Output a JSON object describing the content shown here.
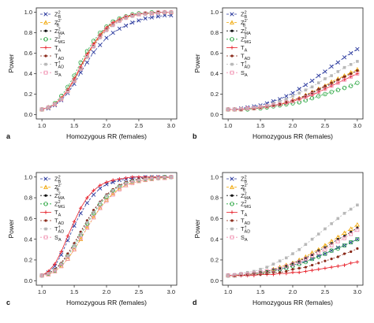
{
  "markers": {
    "Z_B": {
      "shape": "x",
      "color": "#2b3a9e"
    },
    "Z_B_prime": {
      "shape": "triangle",
      "color": "#f0a500"
    },
    "Z_MA": {
      "shape": "dot",
      "color": "#111111"
    },
    "Z_MG": {
      "shape": "circle",
      "color": "#22a33a"
    },
    "T_A": {
      "shape": "plus",
      "color": "#e8202a"
    },
    "T_AD": {
      "shape": "dot",
      "color": "#8a2a1a"
    },
    "T_AD_dagger": {
      "shape": "square",
      "color": "#b8b8b8"
    },
    "S_A": {
      "shape": "square-open",
      "color": "#f08fb0"
    }
  },
  "chart_data": [
    {
      "panel": "a",
      "type": "line",
      "xlabel": "Homozygous RR (females)",
      "ylabel": "Power",
      "xlim": [
        1.0,
        3.0
      ],
      "ylim": [
        0.0,
        1.0
      ],
      "xticks": [
        "1.0",
        "1.5",
        "2.0",
        "2.5",
        "3.0"
      ],
      "yticks": [
        "0.0",
        "0.2",
        "0.4",
        "0.6",
        "0.8",
        "1.0"
      ],
      "x": [
        1.0,
        1.1,
        1.2,
        1.3,
        1.4,
        1.5,
        1.6,
        1.7,
        1.8,
        1.9,
        2.0,
        2.1,
        2.2,
        2.3,
        2.4,
        2.5,
        2.6,
        2.7,
        2.8,
        2.9,
        3.0
      ],
      "series": [
        {
          "id": "Z_B",
          "values": [
            0.05,
            0.06,
            0.09,
            0.14,
            0.21,
            0.3,
            0.41,
            0.51,
            0.61,
            0.68,
            0.75,
            0.8,
            0.84,
            0.87,
            0.9,
            0.92,
            0.94,
            0.95,
            0.96,
            0.97,
            0.97
          ]
        },
        {
          "id": "Z_B_prime",
          "values": [
            0.05,
            0.07,
            0.1,
            0.16,
            0.24,
            0.34,
            0.46,
            0.58,
            0.68,
            0.77,
            0.84,
            0.89,
            0.93,
            0.95,
            0.97,
            0.98,
            0.99,
            0.99,
            1.0,
            1.0,
            1.0
          ]
        },
        {
          "id": "Z_MA",
          "values": [
            0.05,
            0.07,
            0.1,
            0.15,
            0.23,
            0.33,
            0.45,
            0.57,
            0.67,
            0.76,
            0.83,
            0.88,
            0.92,
            0.95,
            0.97,
            0.98,
            0.99,
            0.99,
            1.0,
            1.0,
            1.0
          ]
        },
        {
          "id": "Z_MG",
          "values": [
            0.05,
            0.07,
            0.11,
            0.18,
            0.27,
            0.38,
            0.51,
            0.62,
            0.72,
            0.8,
            0.86,
            0.91,
            0.94,
            0.96,
            0.98,
            0.99,
            0.99,
            1.0,
            1.0,
            1.0,
            1.0
          ]
        },
        {
          "id": "T_A",
          "values": [
            0.05,
            0.07,
            0.1,
            0.16,
            0.24,
            0.35,
            0.47,
            0.59,
            0.69,
            0.78,
            0.85,
            0.9,
            0.93,
            0.96,
            0.97,
            0.98,
            0.99,
            0.99,
            1.0,
            1.0,
            1.0
          ]
        },
        {
          "id": "T_AD",
          "values": [
            0.05,
            0.07,
            0.1,
            0.15,
            0.23,
            0.33,
            0.45,
            0.57,
            0.67,
            0.76,
            0.83,
            0.88,
            0.92,
            0.95,
            0.97,
            0.98,
            0.99,
            0.99,
            1.0,
            1.0,
            1.0
          ]
        },
        {
          "id": "T_AD_dagger",
          "values": [
            0.05,
            0.07,
            0.1,
            0.15,
            0.22,
            0.32,
            0.44,
            0.56,
            0.66,
            0.75,
            0.82,
            0.87,
            0.91,
            0.94,
            0.96,
            0.98,
            0.98,
            0.99,
            0.99,
            1.0,
            1.0
          ]
        },
        {
          "id": "S_A",
          "values": [
            0.05,
            0.07,
            0.1,
            0.15,
            0.23,
            0.33,
            0.45,
            0.57,
            0.67,
            0.76,
            0.83,
            0.88,
            0.92,
            0.95,
            0.97,
            0.98,
            0.99,
            0.99,
            1.0,
            1.0,
            1.0
          ]
        }
      ]
    },
    {
      "panel": "b",
      "type": "line",
      "xlabel": "Homozygous RR (females)",
      "ylabel": "Power",
      "xlim": [
        1.0,
        3.0
      ],
      "ylim": [
        0.0,
        1.0
      ],
      "xticks": [
        "1.0",
        "1.5",
        "2.0",
        "2.5",
        "3.0"
      ],
      "yticks": [
        "0.0",
        "0.2",
        "0.4",
        "0.6",
        "0.8",
        "1.0"
      ],
      "x": [
        1.0,
        1.1,
        1.2,
        1.3,
        1.4,
        1.5,
        1.6,
        1.7,
        1.8,
        1.9,
        2.0,
        2.1,
        2.2,
        2.3,
        2.4,
        2.5,
        2.6,
        2.7,
        2.8,
        2.9,
        3.0
      ],
      "series": [
        {
          "id": "Z_B",
          "values": [
            0.05,
            0.05,
            0.06,
            0.07,
            0.08,
            0.09,
            0.11,
            0.13,
            0.15,
            0.18,
            0.21,
            0.25,
            0.29,
            0.33,
            0.38,
            0.42,
            0.47,
            0.51,
            0.56,
            0.6,
            0.64
          ]
        },
        {
          "id": "Z_B_prime",
          "values": [
            0.05,
            0.05,
            0.05,
            0.06,
            0.06,
            0.07,
            0.08,
            0.09,
            0.1,
            0.12,
            0.14,
            0.16,
            0.19,
            0.22,
            0.25,
            0.28,
            0.32,
            0.35,
            0.38,
            0.41,
            0.44
          ]
        },
        {
          "id": "Z_MA",
          "values": [
            0.05,
            0.05,
            0.05,
            0.06,
            0.06,
            0.07,
            0.08,
            0.09,
            0.1,
            0.12,
            0.14,
            0.16,
            0.18,
            0.21,
            0.24,
            0.27,
            0.3,
            0.34,
            0.37,
            0.4,
            0.43
          ]
        },
        {
          "id": "Z_MG",
          "values": [
            0.05,
            0.05,
            0.05,
            0.05,
            0.06,
            0.06,
            0.07,
            0.08,
            0.09,
            0.1,
            0.11,
            0.12,
            0.14,
            0.16,
            0.18,
            0.2,
            0.22,
            0.24,
            0.26,
            0.28,
            0.31
          ]
        },
        {
          "id": "T_A",
          "values": [
            0.05,
            0.05,
            0.05,
            0.06,
            0.06,
            0.07,
            0.08,
            0.09,
            0.1,
            0.11,
            0.13,
            0.15,
            0.17,
            0.19,
            0.22,
            0.25,
            0.28,
            0.31,
            0.34,
            0.37,
            0.4
          ]
        },
        {
          "id": "T_AD",
          "values": [
            0.05,
            0.05,
            0.05,
            0.06,
            0.06,
            0.07,
            0.08,
            0.09,
            0.1,
            0.12,
            0.14,
            0.16,
            0.19,
            0.22,
            0.25,
            0.28,
            0.31,
            0.34,
            0.37,
            0.4,
            0.43
          ]
        },
        {
          "id": "T_AD_dagger",
          "values": [
            0.05,
            0.05,
            0.06,
            0.06,
            0.07,
            0.08,
            0.09,
            0.11,
            0.13,
            0.15,
            0.18,
            0.21,
            0.24,
            0.27,
            0.31,
            0.35,
            0.38,
            0.42,
            0.46,
            0.49,
            0.52
          ]
        },
        {
          "id": "S_A",
          "values": [
            0.05,
            0.05,
            0.05,
            0.06,
            0.06,
            0.07,
            0.08,
            0.09,
            0.1,
            0.12,
            0.13,
            0.15,
            0.17,
            0.2,
            0.22,
            0.25,
            0.28,
            0.31,
            0.34,
            0.37,
            0.4
          ]
        }
      ]
    },
    {
      "panel": "c",
      "type": "line",
      "xlabel": "Homozygous RR (females)",
      "ylabel": "Power",
      "xlim": [
        1.0,
        3.0
      ],
      "ylim": [
        0.0,
        1.0
      ],
      "xticks": [
        "1.0",
        "1.5",
        "2.0",
        "2.5",
        "3.0"
      ],
      "yticks": [
        "0.0",
        "0.2",
        "0.4",
        "0.6",
        "0.8",
        "1.0"
      ],
      "x": [
        1.0,
        1.1,
        1.2,
        1.3,
        1.4,
        1.5,
        1.6,
        1.7,
        1.8,
        1.9,
        2.0,
        2.1,
        2.2,
        2.3,
        2.4,
        2.5,
        2.6,
        2.7,
        2.8,
        2.9,
        3.0
      ],
      "series": [
        {
          "id": "Z_B",
          "values": [
            0.05,
            0.08,
            0.14,
            0.25,
            0.39,
            0.53,
            0.65,
            0.75,
            0.83,
            0.89,
            0.93,
            0.95,
            0.97,
            0.98,
            0.99,
            0.99,
            1.0,
            1.0,
            1.0,
            1.0,
            1.0
          ]
        },
        {
          "id": "Z_B_prime",
          "values": [
            0.05,
            0.06,
            0.09,
            0.14,
            0.21,
            0.3,
            0.4,
            0.51,
            0.61,
            0.7,
            0.78,
            0.84,
            0.89,
            0.92,
            0.95,
            0.96,
            0.97,
            0.98,
            0.99,
            0.99,
            1.0
          ]
        },
        {
          "id": "Z_MA",
          "values": [
            0.05,
            0.07,
            0.11,
            0.17,
            0.26,
            0.36,
            0.47,
            0.58,
            0.68,
            0.76,
            0.83,
            0.88,
            0.92,
            0.95,
            0.97,
            0.98,
            0.99,
            0.99,
            1.0,
            1.0,
            1.0
          ]
        },
        {
          "id": "Z_MG",
          "values": [
            0.05,
            0.07,
            0.1,
            0.16,
            0.24,
            0.33,
            0.44,
            0.55,
            0.65,
            0.74,
            0.81,
            0.87,
            0.91,
            0.94,
            0.96,
            0.97,
            0.98,
            0.99,
            0.99,
            1.0,
            1.0
          ]
        },
        {
          "id": "T_A",
          "values": [
            0.05,
            0.09,
            0.16,
            0.28,
            0.43,
            0.57,
            0.7,
            0.8,
            0.87,
            0.92,
            0.95,
            0.97,
            0.98,
            0.99,
            1.0,
            1.0,
            1.0,
            1.0,
            1.0,
            1.0,
            1.0
          ]
        },
        {
          "id": "T_AD",
          "values": [
            0.05,
            0.07,
            0.11,
            0.17,
            0.26,
            0.36,
            0.47,
            0.58,
            0.68,
            0.76,
            0.83,
            0.88,
            0.92,
            0.95,
            0.97,
            0.98,
            0.99,
            0.99,
            1.0,
            1.0,
            1.0
          ]
        },
        {
          "id": "T_AD_dagger",
          "values": [
            0.05,
            0.07,
            0.1,
            0.16,
            0.24,
            0.34,
            0.45,
            0.56,
            0.66,
            0.75,
            0.82,
            0.87,
            0.91,
            0.94,
            0.96,
            0.97,
            0.98,
            0.99,
            0.99,
            1.0,
            1.0
          ]
        },
        {
          "id": "S_A",
          "values": [
            0.05,
            0.06,
            0.09,
            0.14,
            0.21,
            0.3,
            0.41,
            0.51,
            0.61,
            0.7,
            0.77,
            0.83,
            0.88,
            0.92,
            0.94,
            0.96,
            0.97,
            0.98,
            0.99,
            0.99,
            1.0
          ]
        }
      ]
    },
    {
      "panel": "d",
      "type": "line",
      "xlabel": "Homozygous RR (females)",
      "ylabel": "Power",
      "xlim": [
        1.0,
        3.0
      ],
      "ylim": [
        0.0,
        1.0
      ],
      "xticks": [
        "1.0",
        "1.5",
        "2.0",
        "2.5",
        "3.0"
      ],
      "yticks": [
        "0.0",
        "0.2",
        "0.4",
        "0.6",
        "0.8",
        "1.0"
      ],
      "x": [
        1.0,
        1.1,
        1.2,
        1.3,
        1.4,
        1.5,
        1.6,
        1.7,
        1.8,
        1.9,
        2.0,
        2.1,
        2.2,
        2.3,
        2.4,
        2.5,
        2.6,
        2.7,
        2.8,
        2.9,
        3.0
      ],
      "series": [
        {
          "id": "Z_B",
          "values": [
            0.05,
            0.05,
            0.06,
            0.06,
            0.07,
            0.08,
            0.09,
            0.1,
            0.11,
            0.13,
            0.15,
            0.17,
            0.19,
            0.21,
            0.24,
            0.26,
            0.29,
            0.32,
            0.34,
            0.37,
            0.4
          ]
        },
        {
          "id": "Z_B_prime",
          "values": [
            0.05,
            0.05,
            0.06,
            0.06,
            0.07,
            0.08,
            0.09,
            0.11,
            0.13,
            0.15,
            0.17,
            0.2,
            0.23,
            0.27,
            0.3,
            0.34,
            0.38,
            0.42,
            0.46,
            0.5,
            0.54
          ]
        },
        {
          "id": "Z_MA",
          "values": [
            0.05,
            0.05,
            0.06,
            0.06,
            0.07,
            0.08,
            0.09,
            0.11,
            0.12,
            0.14,
            0.17,
            0.19,
            0.22,
            0.25,
            0.29,
            0.32,
            0.36,
            0.4,
            0.43,
            0.47,
            0.51
          ]
        },
        {
          "id": "Z_MG",
          "values": [
            0.05,
            0.05,
            0.06,
            0.06,
            0.07,
            0.07,
            0.08,
            0.09,
            0.11,
            0.12,
            0.14,
            0.16,
            0.18,
            0.21,
            0.23,
            0.26,
            0.29,
            0.31,
            0.34,
            0.37,
            0.4
          ]
        },
        {
          "id": "T_A",
          "values": [
            0.05,
            0.05,
            0.05,
            0.05,
            0.05,
            0.06,
            0.06,
            0.06,
            0.07,
            0.07,
            0.08,
            0.08,
            0.09,
            0.1,
            0.11,
            0.12,
            0.13,
            0.14,
            0.15,
            0.17,
            0.18
          ]
        },
        {
          "id": "T_AD",
          "values": [
            0.05,
            0.05,
            0.05,
            0.06,
            0.06,
            0.06,
            0.07,
            0.08,
            0.08,
            0.09,
            0.11,
            0.12,
            0.13,
            0.15,
            0.17,
            0.19,
            0.21,
            0.23,
            0.26,
            0.28,
            0.31
          ]
        },
        {
          "id": "T_AD_dagger",
          "values": [
            0.05,
            0.06,
            0.07,
            0.08,
            0.09,
            0.11,
            0.13,
            0.16,
            0.19,
            0.22,
            0.26,
            0.3,
            0.35,
            0.4,
            0.45,
            0.5,
            0.55,
            0.6,
            0.65,
            0.69,
            0.73
          ]
        },
        {
          "id": "S_A",
          "values": [
            0.05,
            0.05,
            0.06,
            0.06,
            0.07,
            0.08,
            0.09,
            0.1,
            0.12,
            0.14,
            0.16,
            0.18,
            0.21,
            0.24,
            0.27,
            0.3,
            0.34,
            0.38,
            0.41,
            0.45,
            0.49
          ]
        }
      ]
    }
  ]
}
